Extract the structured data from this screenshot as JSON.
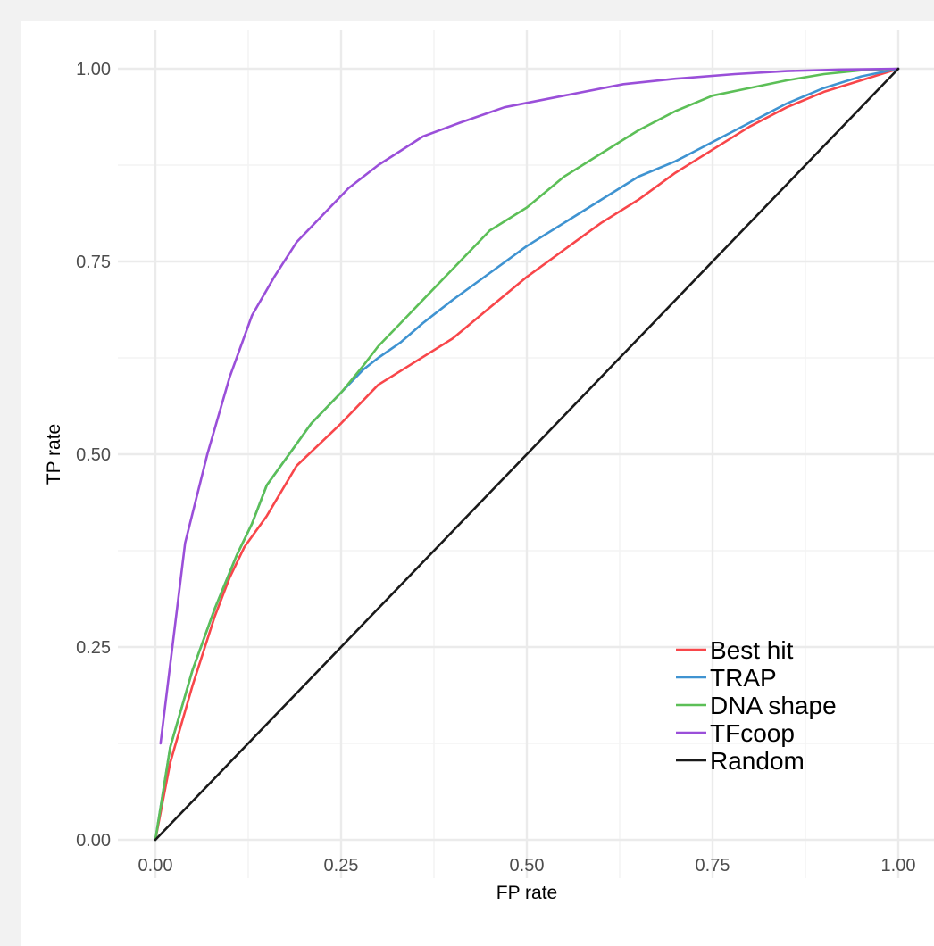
{
  "chart_data": {
    "type": "line",
    "title": "",
    "xlabel": "FP rate",
    "ylabel": "TP rate",
    "xlim": [
      0,
      1
    ],
    "ylim": [
      0,
      1
    ],
    "grid": true,
    "legend_position": "bottom-right",
    "x_ticks": [
      "0.00",
      "0.25",
      "0.50",
      "0.75",
      "1.00"
    ],
    "y_ticks": [
      "0.00",
      "0.25",
      "0.50",
      "0.75",
      "1.00"
    ],
    "series": [
      {
        "name": "Best hit",
        "color": "#f8464a",
        "x": [
          0,
          0.02,
          0.05,
          0.08,
          0.1,
          0.12,
          0.15,
          0.19,
          0.25,
          0.3,
          0.35,
          0.4,
          0.45,
          0.5,
          0.55,
          0.6,
          0.65,
          0.7,
          0.75,
          0.8,
          0.85,
          0.9,
          0.95,
          1.0
        ],
        "y": [
          0,
          0.1,
          0.2,
          0.29,
          0.34,
          0.38,
          0.42,
          0.485,
          0.54,
          0.59,
          0.62,
          0.65,
          0.69,
          0.73,
          0.765,
          0.8,
          0.83,
          0.865,
          0.895,
          0.925,
          0.95,
          0.97,
          0.985,
          1.0
        ]
      },
      {
        "name": "TRAP",
        "color": "#3f93d1",
        "x": [
          0,
          0.02,
          0.05,
          0.08,
          0.11,
          0.13,
          0.15,
          0.18,
          0.21,
          0.25,
          0.28,
          0.3,
          0.33,
          0.36,
          0.4,
          0.45,
          0.5,
          0.55,
          0.6,
          0.65,
          0.7,
          0.75,
          0.8,
          0.85,
          0.9,
          0.95,
          1.0
        ],
        "y": [
          0,
          0.12,
          0.22,
          0.3,
          0.37,
          0.41,
          0.46,
          0.5,
          0.54,
          0.58,
          0.61,
          0.625,
          0.645,
          0.67,
          0.7,
          0.735,
          0.77,
          0.8,
          0.83,
          0.86,
          0.88,
          0.905,
          0.93,
          0.955,
          0.975,
          0.99,
          1.0
        ]
      },
      {
        "name": "DNA shape",
        "color": "#5cbf57",
        "x": [
          0,
          0.02,
          0.05,
          0.08,
          0.11,
          0.13,
          0.15,
          0.18,
          0.21,
          0.25,
          0.28,
          0.3,
          0.33,
          0.36,
          0.4,
          0.45,
          0.5,
          0.55,
          0.6,
          0.65,
          0.7,
          0.75,
          0.8,
          0.85,
          0.9,
          0.95,
          1.0
        ],
        "y": [
          0,
          0.12,
          0.22,
          0.3,
          0.37,
          0.41,
          0.46,
          0.5,
          0.54,
          0.58,
          0.615,
          0.64,
          0.67,
          0.7,
          0.74,
          0.79,
          0.82,
          0.86,
          0.89,
          0.92,
          0.945,
          0.965,
          0.975,
          0.985,
          0.993,
          0.998,
          1.0
        ]
      },
      {
        "name": "TFcoop",
        "color": "#9a4fd9",
        "x": [
          0.007,
          0.04,
          0.07,
          0.1,
          0.13,
          0.16,
          0.19,
          0.22,
          0.26,
          0.3,
          0.36,
          0.41,
          0.47,
          0.55,
          0.63,
          0.7,
          0.78,
          0.85,
          0.92,
          1.0
        ],
        "y": [
          0.125,
          0.385,
          0.5,
          0.6,
          0.68,
          0.73,
          0.775,
          0.805,
          0.845,
          0.875,
          0.912,
          0.93,
          0.95,
          0.965,
          0.98,
          0.987,
          0.993,
          0.997,
          0.999,
          1.0
        ]
      },
      {
        "name": "Random",
        "color": "#1a1a1a",
        "x": [
          0,
          1
        ],
        "y": [
          0,
          1
        ]
      }
    ]
  }
}
